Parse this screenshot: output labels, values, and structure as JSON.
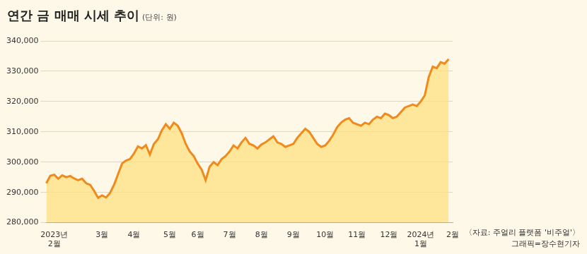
{
  "chart_data": {
    "type": "area",
    "title": "연간 금 매매 시세 추이",
    "subtitle": "(단위: 원)",
    "annotations": [
      "〈자료: 주얼리 플랫폼 '비주얼'〉",
      "그래픽=장수현기자"
    ],
    "categories": [
      null,
      null,
      "2023년\n2월",
      null,
      null,
      null,
      null,
      null,
      null,
      null,
      null,
      null,
      null,
      null,
      "3월",
      null,
      null,
      null,
      null,
      null,
      null,
      null,
      "4월",
      null,
      null,
      null,
      null,
      null,
      null,
      null,
      null,
      "5월",
      null,
      null,
      null,
      null,
      null,
      null,
      "6월",
      null,
      null,
      null,
      null,
      null,
      null,
      null,
      "7월",
      null,
      null,
      null,
      null,
      null,
      null,
      null,
      "8월",
      null,
      null,
      null,
      null,
      null,
      null,
      null,
      "9월",
      null,
      null,
      null,
      null,
      null,
      null,
      null,
      "10월",
      null,
      null,
      null,
      null,
      null,
      null,
      null,
      "11월",
      null,
      null,
      null,
      null,
      null,
      null,
      null,
      "12월",
      null,
      null,
      null,
      null,
      null,
      null,
      null,
      "2024년\n1월",
      null,
      null,
      null,
      null,
      null,
      null,
      null,
      "2월"
    ],
    "values": [
      293000,
      295500,
      295800,
      294500,
      295600,
      295000,
      295400,
      294600,
      294000,
      294500,
      293000,
      292500,
      290500,
      288200,
      289000,
      288300,
      289800,
      292500,
      296000,
      299500,
      300500,
      301000,
      302800,
      305200,
      304500,
      305600,
      302500,
      306000,
      307500,
      310500,
      312500,
      311000,
      313000,
      312000,
      309500,
      306000,
      303500,
      302000,
      299500,
      297500,
      294000,
      298500,
      300000,
      299000,
      301000,
      302000,
      303500,
      305500,
      304500,
      306500,
      308000,
      306000,
      305500,
      304500,
      305800,
      306500,
      307500,
      308500,
      306500,
      306000,
      305000,
      305500,
      306000,
      308000,
      309500,
      311000,
      310000,
      308000,
      306000,
      305000,
      305500,
      307000,
      309000,
      311500,
      313000,
      314000,
      314500,
      313000,
      312500,
      312000,
      313000,
      312500,
      314000,
      315000,
      314500,
      316000,
      315500,
      314500,
      315000,
      316500,
      318000,
      318500,
      319000,
      318500,
      320000,
      322000,
      328000,
      331500,
      331000,
      333000,
      332500,
      334000,
      null
    ],
    "color": "#f08a1c",
    "ylim": [
      280000,
      340000
    ],
    "yticks": [
      {
        "value": 280000,
        "label": "280,000"
      },
      {
        "value": 290000,
        "label": "290,000"
      },
      {
        "value": 300000,
        "label": "300,000"
      },
      {
        "value": 310000,
        "label": "310,000"
      },
      {
        "value": 320000,
        "label": "320,000"
      },
      {
        "value": 330000,
        "label": "330,000"
      },
      {
        "value": 340000,
        "label": "340,000"
      }
    ],
    "grid": true
  }
}
